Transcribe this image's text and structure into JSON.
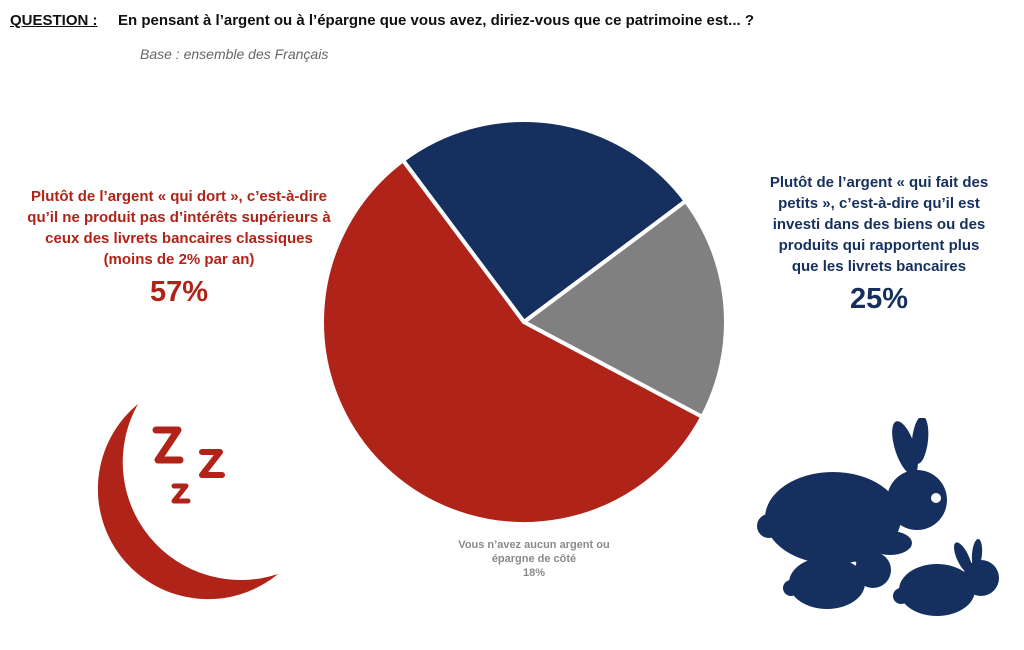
{
  "header": {
    "question_label": "QUESTION :",
    "question_text": "En pensant à l’argent ou à l’épargne que vous avez, diriez-vous que ce patrimoine est... ?",
    "base": "Base : ensemble des Français"
  },
  "colors": {
    "red": "#b02318",
    "navy": "#15305e",
    "gray": "#808080"
  },
  "icons": {
    "left": "moon-zzz-icon",
    "right": "rabbits-icon"
  },
  "chart_data": {
    "type": "pie",
    "series": [
      {
        "name": "Plutôt de l’argent « qui dort », c’est-à-dire qu’il ne produit pas d’intérêts supérieurs à ceux des livrets bancaires classiques (moins de 2% par an)",
        "value": 57,
        "label": "57%",
        "color": "#b02318"
      },
      {
        "name": "Plutôt de l’argent « qui fait des petits », c’est-à-dire qu’il est investi dans des biens ou des produits qui rapportent plus que les livrets bancaires",
        "value": 25,
        "label": "25%",
        "color": "#15305e"
      },
      {
        "name": "Vous n’avez aucun argent ou épargne de côté",
        "value": 18,
        "label": "18%",
        "color": "#808080"
      }
    ]
  }
}
